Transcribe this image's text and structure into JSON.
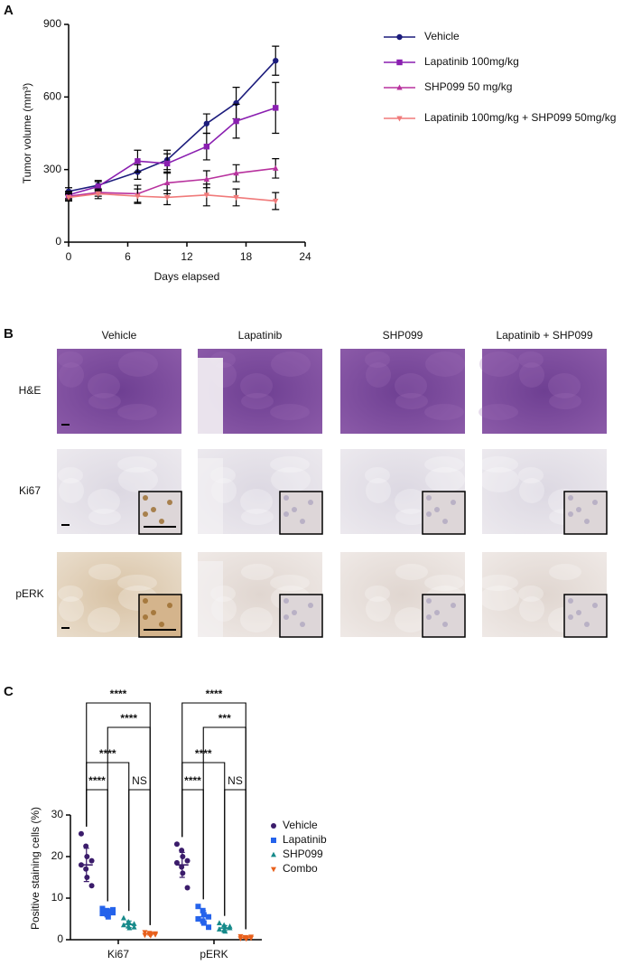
{
  "panels": [
    "A",
    "B",
    "C"
  ],
  "chart_data": [
    {
      "type": "line",
      "y_label": "Tumor volume (mm³)",
      "x_label": "Days elapsed",
      "x": [
        0,
        3,
        7,
        10,
        14,
        17,
        21
      ],
      "xlim": [
        0,
        24
      ],
      "xticks": [
        0,
        6,
        12,
        18,
        24
      ],
      "ylim": [
        0,
        900
      ],
      "yticks": [
        0,
        300,
        600,
        900
      ],
      "legend": "right",
      "series": [
        {
          "name": "Vehicle",
          "color": "#1c1c7c",
          "marker": "circle",
          "values": [
            210,
            235,
            290,
            340,
            490,
            575,
            750
          ],
          "errors": [
            15,
            20,
            30,
            40,
            40,
            65,
            60
          ]
        },
        {
          "name": "Lapatinib 100mg/kg",
          "color": "#8a1fb0",
          "marker": "square",
          "values": [
            195,
            230,
            335,
            325,
            395,
            500,
            555
          ],
          "errors": [
            15,
            20,
            45,
            40,
            55,
            70,
            105
          ]
        },
        {
          "name": "SHP099 50 mg/kg",
          "color": "#b8329e",
          "marker": "triangle-up",
          "values": [
            190,
            205,
            200,
            245,
            260,
            285,
            305
          ],
          "errors": [
            15,
            15,
            35,
            45,
            35,
            35,
            40
          ]
        },
        {
          "name": "Lapatinib 100mg/kg + SHP099 50mg/kg",
          "color": "#f07a7a",
          "marker": "triangle-down",
          "values": [
            185,
            200,
            190,
            185,
            195,
            185,
            170
          ],
          "errors": [
            15,
            20,
            30,
            30,
            45,
            35,
            35
          ]
        }
      ]
    },
    {
      "type": "strip",
      "y_label": "Positive staining cells (%)",
      "categories": [
        "Ki67",
        "pERK"
      ],
      "ylim": [
        0,
        30
      ],
      "yticks": [
        0,
        10,
        20,
        30
      ],
      "legend": "right",
      "series": [
        {
          "name": "Vehicle",
          "color": "#3b1c6b",
          "marker": "circle",
          "values": [
            [
              25.5,
              22.5,
              20,
              19,
              18,
              17,
              15,
              13
            ],
            [
              23,
              21.5,
              20,
              19,
              18.5,
              17.5,
              16,
              12.5
            ]
          ],
          "mean": [
            18,
            18
          ],
          "sd": [
            4,
            3
          ]
        },
        {
          "name": "Lapatinib",
          "color": "#2563eb",
          "marker": "square",
          "values": [
            [
              7.5,
              7,
              6.8,
              6.5,
              6.3,
              6,
              5.5,
              7.2
            ],
            [
              8,
              7,
              6,
              5.5,
              5,
              4.5,
              4,
              3
            ]
          ],
          "mean": [
            6.5,
            5.5
          ],
          "sd": [
            0.7,
            1.5
          ]
        },
        {
          "name": "SHP099",
          "color": "#168a8a",
          "marker": "triangle-up",
          "values": [
            [
              5.2,
              4.3,
              4,
              3.8,
              3.5,
              3.2,
              2.8,
              3
            ],
            [
              4,
              3.5,
              3,
              2.8,
              2.5,
              2.2,
              2,
              3.2
            ]
          ],
          "mean": [
            3.7,
            2.8
          ],
          "sd": [
            0.8,
            0.6
          ]
        },
        {
          "name": "Combo",
          "color": "#e8601c",
          "marker": "triangle-down",
          "values": [
            [
              1.8,
              1.6,
              1.4,
              1.2,
              1.1,
              1.3,
              1,
              1.5
            ],
            [
              0.8,
              0.6,
              0.5,
              0.4,
              0.3,
              0.5,
              0.2,
              0.7
            ]
          ],
          "mean": [
            1.4,
            0.5
          ],
          "sd": [
            0.3,
            0.2
          ]
        }
      ],
      "significance": [
        [
          "****",
          "****",
          "****",
          "****",
          "NS"
        ],
        [
          "****",
          "***",
          "****",
          "****",
          "NS"
        ]
      ]
    }
  ],
  "image_grid": {
    "columns": [
      "Vehicle",
      "Lapatinib",
      "SHP099",
      "Lapatinib + SHP099"
    ],
    "rows": [
      "H&E",
      "Ki67",
      "pERK"
    ]
  }
}
